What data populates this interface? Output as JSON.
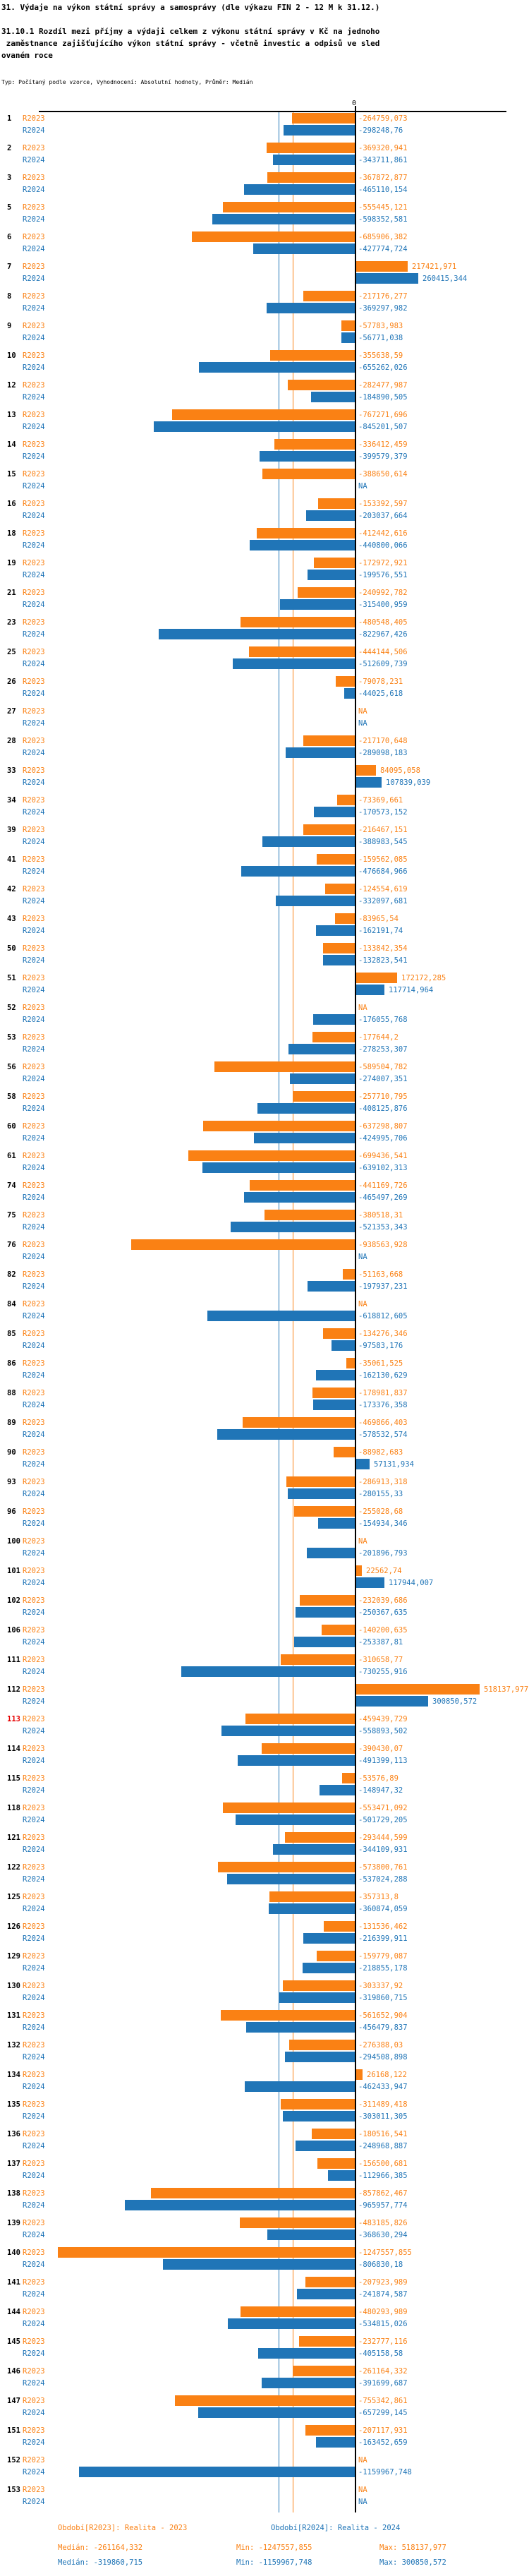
{
  "header": {
    "title": "31. Výdaje na výkon státní správy a samosprávy (dle výkazu FIN 2 - 12 M k 31.12.)",
    "subtitle_lines": [
      "31.10.1 Rozdíl mezi příjmy a výdaji celkem z výkonu státní správy v Kč na jednoho",
      " zaměstnance zajišťujícího výkon státní správy - včetně investic a odpisů ve sled",
      "ovaném roce"
    ],
    "meta": "Typ: Počítaný podle vzorce, Vyhodnocení: Absolutní hodnoty, Průměr: Medián"
  },
  "colors": {
    "r2023": "#FA8114",
    "r2024": "#2075B7",
    "highlight": "#E60000",
    "axis": "#000000"
  },
  "axis": {
    "zero_label": "0"
  },
  "footer": {
    "period_r2023": "Období[R2023]: Realita - 2023",
    "period_r2024": "Období[R2024]: Realita - 2024",
    "median_r2023": "Medián: -261164,332",
    "min_r2023": "Min: -1247557,855",
    "max_r2023": "Max: 518137,977",
    "median_r2024": "Medián: -319860,715",
    "min_r2024": "Min: -1159967,748",
    "max_r2024": "Max: 300850,572"
  },
  "chart_data": {
    "type": "bar",
    "orientation": "horizontal",
    "title": "31.10.1 Rozdíl mezi příjmy a výdaji celkem z výkonu státní správy v Kč na jednoho zaměstnance zajišťujícího výkon státní správy - včetně investic a odpisů ve sledovaném roce",
    "value_axis": {
      "zero_label": "0",
      "min": -1247557.855,
      "max": 518137.977
    },
    "null_display": "NA",
    "decimal_separator": ",",
    "legend_position": "bottom",
    "highlighted_categories": [
      "113"
    ],
    "categories": [
      "1",
      "2",
      "3",
      "5",
      "6",
      "7",
      "8",
      "9",
      "10",
      "12",
      "13",
      "14",
      "15",
      "16",
      "18",
      "19",
      "21",
      "23",
      "25",
      "26",
      "27",
      "28",
      "33",
      "34",
      "39",
      "41",
      "42",
      "43",
      "50",
      "51",
      "52",
      "53",
      "56",
      "58",
      "60",
      "61",
      "74",
      "75",
      "76",
      "82",
      "84",
      "85",
      "86",
      "88",
      "89",
      "90",
      "93",
      "96",
      "100",
      "101",
      "102",
      "106",
      "111",
      "112",
      "113",
      "114",
      "115",
      "118",
      "121",
      "122",
      "125",
      "126",
      "129",
      "130",
      "131",
      "132",
      "134",
      "135",
      "136",
      "137",
      "138",
      "139",
      "140",
      "141",
      "144",
      "145",
      "146",
      "147",
      "151",
      "152",
      "153"
    ],
    "series": [
      {
        "name": "R2023",
        "period_label": "Období[R2023]: Realita - 2023",
        "color_key": "r2023",
        "median": -261164.332,
        "min": -1247557.855,
        "max": 518137.977,
        "values": [
          -264759.073,
          -369320.941,
          -367872.877,
          -555445.121,
          -685906.382,
          217421.971,
          -217176.277,
          -57783.983,
          -355638.59,
          -282477.987,
          -767271.696,
          -336412.459,
          -388650.614,
          -153392.597,
          -412442.616,
          -172972.921,
          -240992.782,
          -480548.405,
          -444144.506,
          -79078.231,
          null,
          -217170.648,
          84095.058,
          -73369.661,
          -216467.151,
          -159562.085,
          -124554.619,
          -83965.54,
          -133842.354,
          172172.285,
          null,
          -177644.2,
          -589504.782,
          -257710.795,
          -637298.807,
          -699436.541,
          -441169.726,
          -380518.31,
          -938563.928,
          -51163.668,
          null,
          -134276.346,
          -35061.525,
          -178981.837,
          -469866.403,
          -88982.683,
          -286913.318,
          -255028.68,
          null,
          22562.74,
          -232039.686,
          -140200.635,
          -310658.77,
          518137.977,
          -459439.729,
          -390430.07,
          -53576.89,
          -553471.092,
          -293444.599,
          -573800.761,
          -357313.8,
          -131536.462,
          -159779.087,
          -303337.92,
          -561652.904,
          -276388.03,
          26168.122,
          -311489.418,
          -180516.541,
          -156500.681,
          -857862.467,
          -483185.826,
          -1247557.855,
          -207923.989,
          -480293.989,
          -232777.116,
          -261164.332,
          -755342.861,
          -207117.931,
          null,
          null
        ]
      },
      {
        "name": "R2024",
        "period_label": "Období[R2024]: Realita - 2024",
        "color_key": "r2024",
        "median": -319860.715,
        "min": -1159967.748,
        "max": 300850.572,
        "values": [
          -298248.76,
          -343711.861,
          -465110.154,
          -598352.581,
          -427774.724,
          260415.344,
          -369297.982,
          -56771.038,
          -655262.026,
          -184890.505,
          -845201.507,
          -399579.379,
          null,
          -203037.664,
          -440800.066,
          -199576.551,
          -315400.959,
          -822967.426,
          -512609.739,
          -44025.618,
          null,
          -289098.183,
          107839.039,
          -170573.152,
          -388983.545,
          -476684.966,
          -332097.681,
          -162191.74,
          -132823.541,
          117714.964,
          -176055.768,
          -278253.307,
          -274007.351,
          -408125.876,
          -424995.706,
          -639102.313,
          -465497.269,
          -521353.343,
          null,
          -197937.231,
          -618812.605,
          -97583.176,
          -162130.629,
          -173376.358,
          -578532.574,
          57131.934,
          -280155.33,
          -154934.346,
          -201896.793,
          117944.007,
          -250367.635,
          -253387.81,
          -730255.916,
          300850.572,
          -558893.502,
          -491399.113,
          -148947.32,
          -501729.205,
          -344109.931,
          -537024.288,
          -360874.059,
          -216399.911,
          -218855.178,
          -319860.715,
          -456479.837,
          -294508.898,
          -462433.947,
          -303011.305,
          -248968.887,
          -112966.385,
          -965957.774,
          -368630.294,
          -806830.18,
          -241874.587,
          -534815.026,
          -405158.58,
          -391699.687,
          -657299.145,
          -163452.659,
          -1159967.748,
          null
        ]
      }
    ]
  }
}
